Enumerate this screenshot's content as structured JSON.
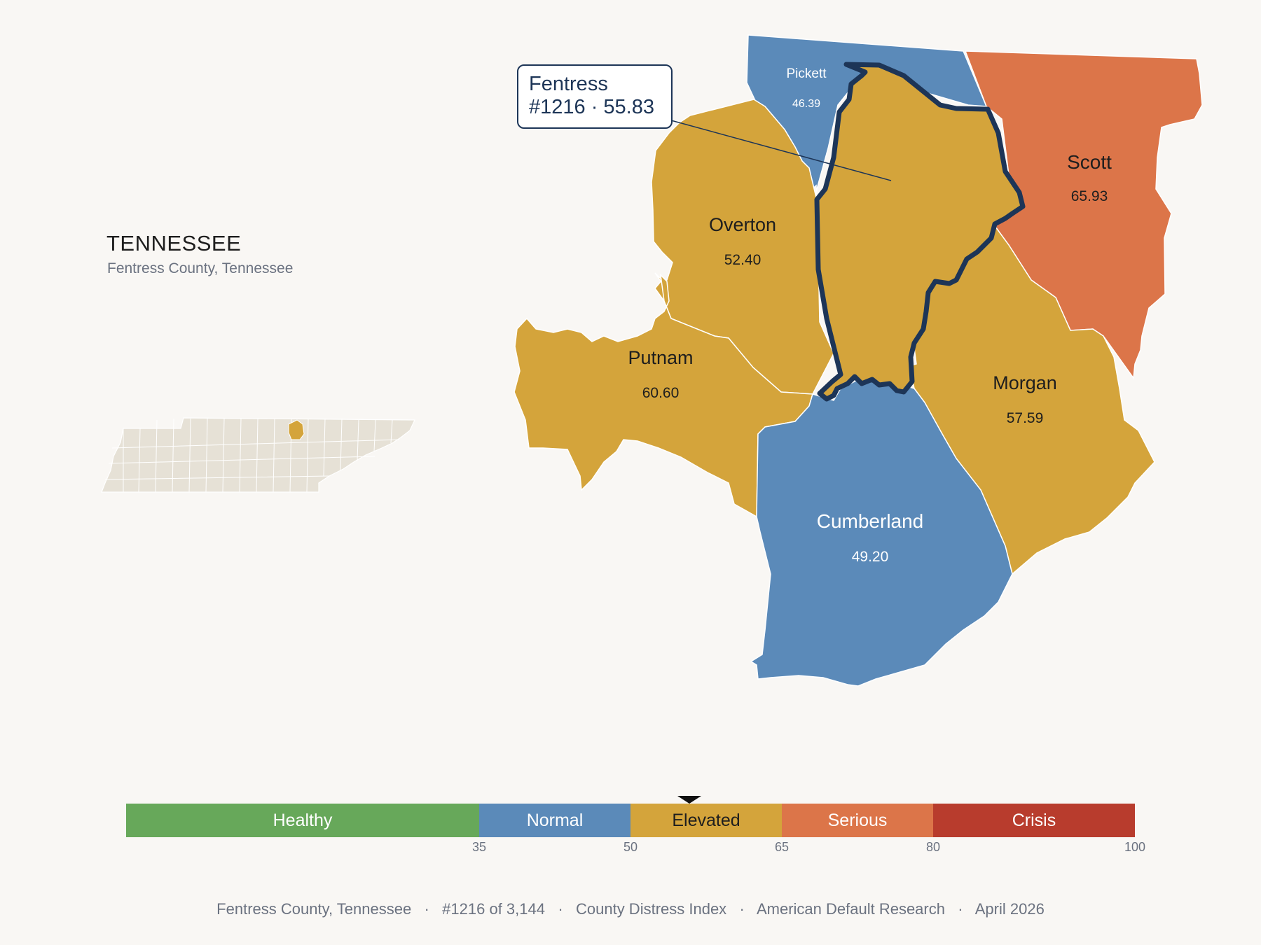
{
  "state": {
    "title": "TENNESSEE",
    "subtitle": "Fentress County, Tennessee"
  },
  "callout": {
    "name": "Fentress",
    "detail": "#1216 · 55.83"
  },
  "counties": [
    {
      "name": "Pickett",
      "value": "46.39",
      "category": "Normal",
      "color": "#5b8ab9"
    },
    {
      "name": "Scott",
      "value": "65.93",
      "category": "Serious",
      "color": "#dc7549"
    },
    {
      "name": "Overton",
      "value": "52.40",
      "category": "Elevated",
      "color": "#d4a43b"
    },
    {
      "name": "Putnam",
      "value": "60.60",
      "category": "Elevated",
      "color": "#d4a43b"
    },
    {
      "name": "Morgan",
      "value": "57.59",
      "category": "Elevated",
      "color": "#d4a43b"
    },
    {
      "name": "Cumberland",
      "value": "49.20",
      "category": "Normal",
      "color": "#5b8ab9"
    },
    {
      "name": "Fentress",
      "value": "55.83",
      "category": "Elevated",
      "color": "#d4a43b",
      "highlighted": true
    }
  ],
  "legend": {
    "min": 0,
    "max": 100,
    "marker_value": 55.83,
    "categories": [
      {
        "label": "Healthy",
        "from": 0,
        "to": 35,
        "color": "#67a85a"
      },
      {
        "label": "Normal",
        "from": 35,
        "to": 50,
        "color": "#5b8ab9"
      },
      {
        "label": "Elevated",
        "from": 50,
        "to": 65,
        "color": "#d4a43b"
      },
      {
        "label": "Serious",
        "from": 65,
        "to": 80,
        "color": "#dc7549"
      },
      {
        "label": "Crisis",
        "from": 80,
        "to": 100,
        "color": "#b83c2d"
      }
    ],
    "ticks": [
      "35",
      "50",
      "65",
      "80",
      "100"
    ]
  },
  "footer": {
    "text": "Fentress County, Tennessee   ·   #1216 of 3,144   ·   County Distress Index   ·   American Default Research   ·   April 2026"
  }
}
